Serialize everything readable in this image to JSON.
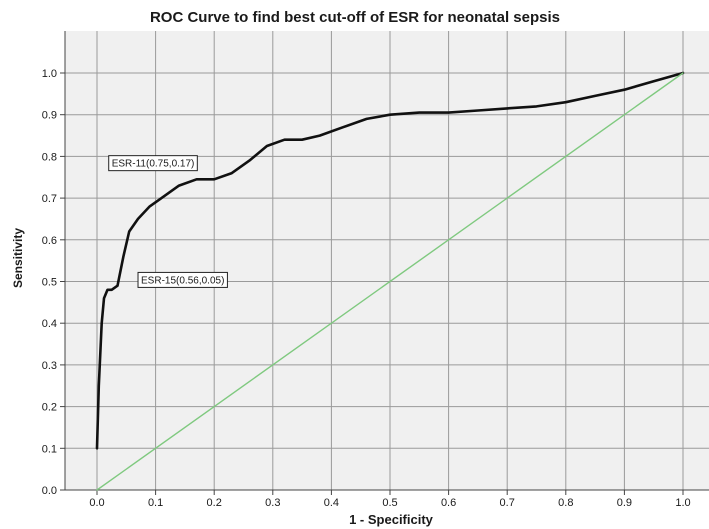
{
  "chart_data": {
    "type": "line",
    "title": "ROC Curve to find best cut-off of ESR for neonatal sepsis",
    "xlabel": "1 - Specificity",
    "ylabel": "Sensitivity",
    "xlim": [
      0,
      1
    ],
    "ylim": [
      0,
      1
    ],
    "xticks": [
      "0.0",
      "0.1",
      "0.2",
      "0.3",
      "0.4",
      "0.5",
      "0.6",
      "0.7",
      "0.8",
      "0.9",
      "1.0"
    ],
    "yticks": [
      "0.0",
      "0.1",
      "0.2",
      "0.3",
      "0.4",
      "0.5",
      "0.6",
      "0.7",
      "0.8",
      "0.9",
      "1.0"
    ],
    "grid": true,
    "plot_background": "#f0f0f0",
    "grid_color": "#9a9a9a",
    "series": [
      {
        "color": "#111111",
        "x": [
          0.0,
          0.003,
          0.008,
          0.012,
          0.018,
          0.025,
          0.035,
          0.045,
          0.055,
          0.07,
          0.09,
          0.11,
          0.14,
          0.17,
          0.2,
          0.23,
          0.26,
          0.29,
          0.32,
          0.35,
          0.38,
          0.42,
          0.46,
          0.5,
          0.55,
          0.6,
          0.65,
          0.7,
          0.75,
          0.8,
          0.85,
          0.9,
          0.95,
          1.0
        ],
        "y": [
          0.1,
          0.25,
          0.4,
          0.46,
          0.48,
          0.48,
          0.49,
          0.56,
          0.62,
          0.65,
          0.68,
          0.7,
          0.73,
          0.745,
          0.745,
          0.76,
          0.79,
          0.825,
          0.84,
          0.84,
          0.85,
          0.87,
          0.89,
          0.9,
          0.905,
          0.905,
          0.91,
          0.915,
          0.92,
          0.93,
          0.945,
          0.96,
          0.98,
          1.0
        ]
      },
      {
        "color": "#7fc97f",
        "x": [
          0,
          1
        ],
        "y": [
          0,
          1
        ]
      }
    ],
    "annotations": [
      {
        "text": "ESR-11(0.75,0.17)",
        "x": 0.02,
        "y": 0.785
      },
      {
        "text": "ESR-15(0.56,0.05)",
        "x": 0.07,
        "y": 0.505
      }
    ]
  }
}
